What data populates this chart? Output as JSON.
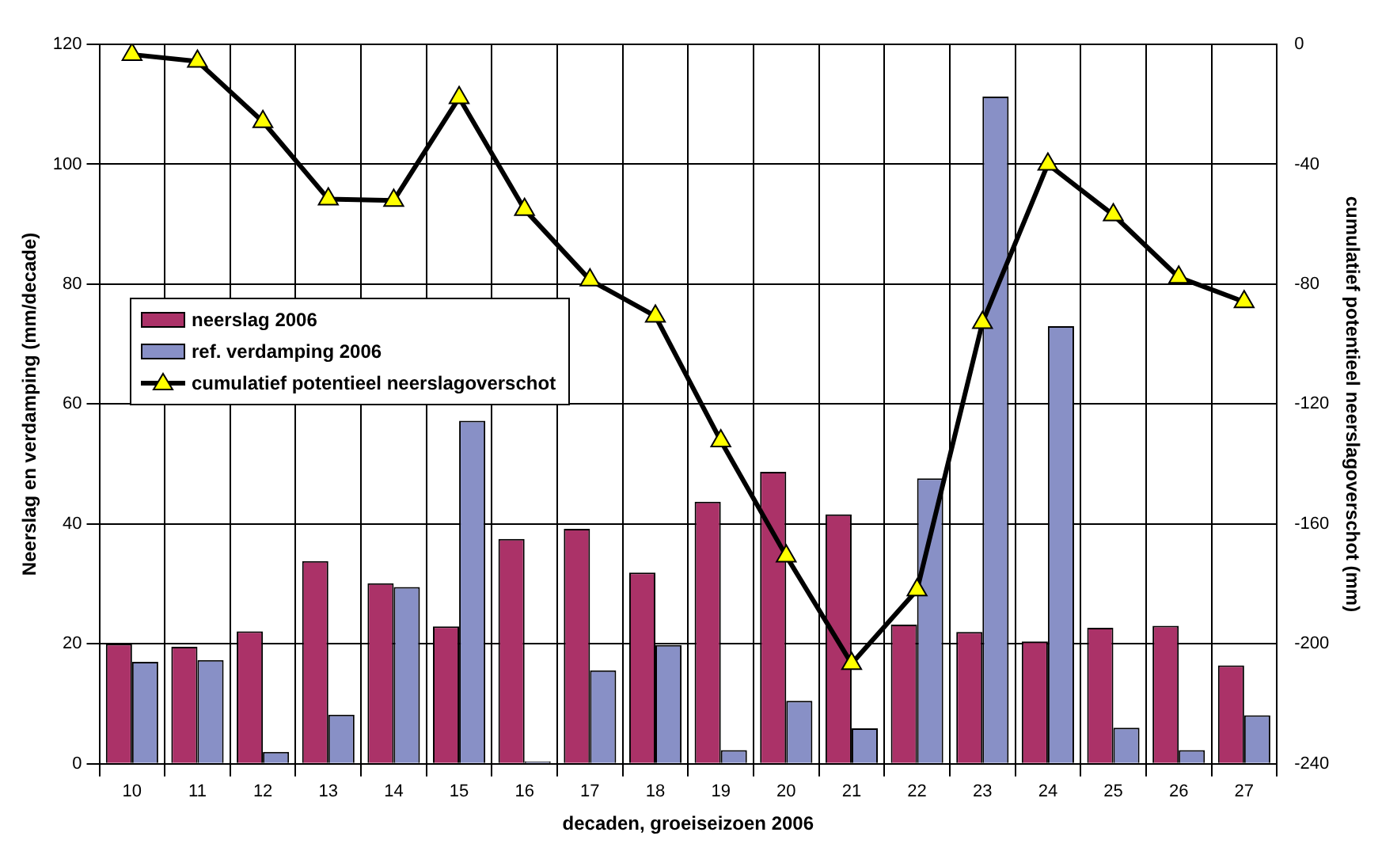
{
  "chart_data": {
    "type": "bar",
    "categories": [
      "10",
      "11",
      "12",
      "13",
      "14",
      "15",
      "16",
      "17",
      "18",
      "19",
      "20",
      "21",
      "22",
      "23",
      "24",
      "25",
      "26",
      "27"
    ],
    "series": [
      {
        "name": "neerslag 2006",
        "color": "#ab3268",
        "values": [
          20,
          19.5,
          22.1,
          33.8,
          30.1,
          22.9,
          37.5,
          39.2,
          31.9,
          43.7,
          48.7,
          41.6,
          23.2,
          22.0,
          20.4,
          22.7,
          23.0,
          16.4
        ]
      },
      {
        "name": "ref. verdamping 2006",
        "color": "#8890c6",
        "values": [
          17.0,
          17.3,
          2.0,
          8.2,
          29.5,
          57.2,
          0.4,
          15.6,
          19.8,
          2.3,
          10.5,
          5.9,
          47.6,
          111.3,
          73.0,
          6.0,
          2.3,
          8.1
        ]
      },
      {
        "name": "cumulatief potentieel neerslagoverschot",
        "type": "line",
        "axis": "y2",
        "color": "#000000",
        "marker": "triangle",
        "values": [
          -3.4,
          -5.7,
          -25.8,
          -51.6,
          -52.1,
          -17.8,
          -55.1,
          -78.6,
          -90.7,
          -132.3,
          -170.7,
          -206.6,
          -182.0,
          -92.8,
          -40.0,
          -56.9,
          -77.7,
          -85.9
        ]
      }
    ],
    "xlabel": "decaden, groeiseizoen 2006",
    "ylabel": "Neerslag en verdamping (mm/decade)",
    "y2label": "cumulatief potentieel neerslagoverschot (mm)",
    "ylim": [
      0,
      120
    ],
    "yticks": [
      0,
      20,
      40,
      60,
      80,
      100,
      120
    ],
    "y2lim": [
      -240,
      0
    ],
    "y2ticks": [
      -240,
      -200,
      -160,
      -120,
      -80,
      -40,
      0
    ],
    "grid": true,
    "legend": "top left"
  }
}
